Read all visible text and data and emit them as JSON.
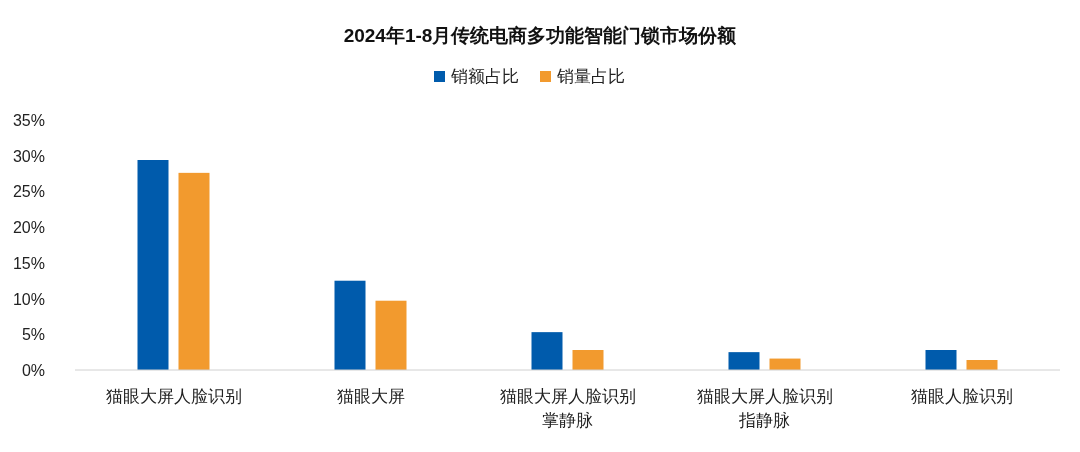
{
  "chart_data": {
    "type": "bar",
    "title": "2024年1-8月传统电商多功能智能门锁市场份额",
    "categories": [
      "猫眼大屏人脸识别",
      "猫眼大屏",
      "猫眼大屏人脸识别掌静脉",
      "猫眼大屏人脸识别指静脉",
      "猫眼人脸识别"
    ],
    "series": [
      {
        "name": "销额占比",
        "color": "#005bac",
        "values": [
          29.4,
          12.5,
          5.3,
          2.5,
          2.8
        ]
      },
      {
        "name": "销量占比",
        "color": "#f29a2e",
        "values": [
          27.6,
          9.7,
          2.8,
          1.6,
          1.4
        ]
      }
    ],
    "ylim": [
      0,
      35
    ],
    "yticks": [
      {
        "value": 0,
        "label": "0%"
      },
      {
        "value": 5,
        "label": "5%"
      },
      {
        "value": 10,
        "label": "10%"
      },
      {
        "value": 15,
        "label": "15%"
      },
      {
        "value": 20,
        "label": "20%"
      },
      {
        "value": 25,
        "label": "25%"
      },
      {
        "value": 30,
        "label": "30%"
      },
      {
        "value": 35,
        "label": "35%"
      }
    ],
    "grid": false,
    "legend": "top"
  }
}
